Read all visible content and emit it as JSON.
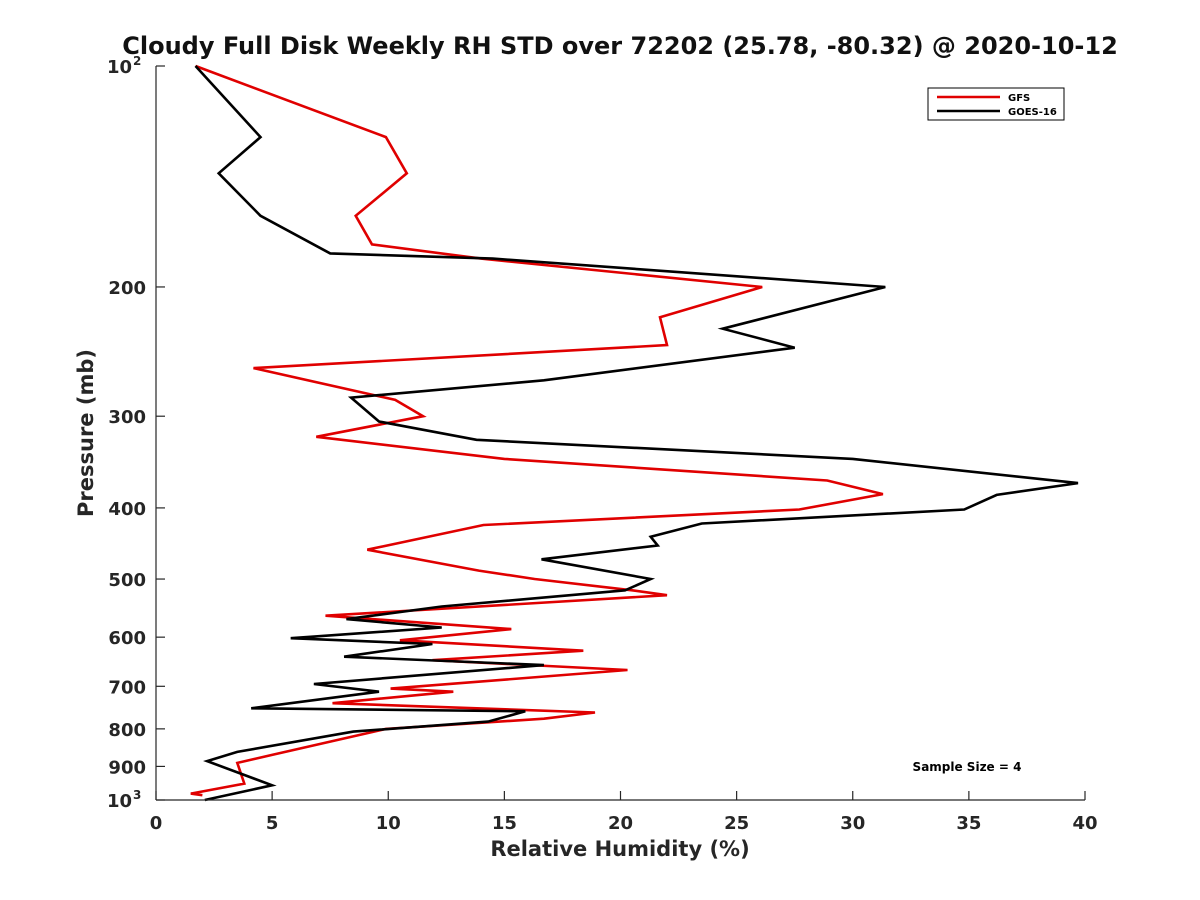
{
  "chart_data": {
    "type": "line",
    "title": "Cloudy Full Disk Weekly RH STD over 72202 (25.78, -80.32) @ 2020-10-12",
    "xlabel": "Relative Humidity (%)",
    "ylabel": "Pressure (mb)",
    "xlim": [
      0,
      40
    ],
    "ylim": [
      100,
      1000
    ],
    "y_scale": "log",
    "y_reversed": true,
    "x_ticks": [
      "0",
      "5",
      "10",
      "15",
      "20",
      "25",
      "30",
      "35",
      "40"
    ],
    "y_ticks": [
      {
        "value": 100,
        "base": "10",
        "exp": "2"
      },
      {
        "value": 200,
        "label": "200"
      },
      {
        "value": 300,
        "label": "300"
      },
      {
        "value": 400,
        "label": "400"
      },
      {
        "value": 500,
        "label": "500"
      },
      {
        "value": 600,
        "label": "600"
      },
      {
        "value": 700,
        "label": "700"
      },
      {
        "value": 800,
        "label": "800"
      },
      {
        "value": 900,
        "label": "900"
      },
      {
        "value": 1000,
        "base": "10",
        "exp": "3"
      }
    ],
    "grid": false,
    "legend_position": "top-right",
    "annotation": "Sample Size = 4",
    "series": [
      {
        "name": "GFS",
        "color": "#e00000",
        "points": [
          [
            1.7,
            100
          ],
          [
            9.9,
            125
          ],
          [
            10.8,
            140
          ],
          [
            8.6,
            160
          ],
          [
            9.3,
            175
          ],
          [
            14,
            183
          ],
          [
            26.1,
            200
          ],
          [
            21.7,
            220
          ],
          [
            22,
            240
          ],
          [
            4.2,
            258
          ],
          [
            10.3,
            285
          ],
          [
            11.5,
            300
          ],
          [
            6.9,
            320
          ],
          [
            15,
            343
          ],
          [
            28.9,
            367
          ],
          [
            31.3,
            383
          ],
          [
            27.7,
            402
          ],
          [
            14.1,
            422
          ],
          [
            9.1,
            456
          ],
          [
            13.9,
            487
          ],
          [
            16.3,
            500
          ],
          [
            20.5,
            518
          ],
          [
            22,
            526
          ],
          [
            7.3,
            561
          ],
          [
            15.3,
            585
          ],
          [
            10.5,
            606
          ],
          [
            18.4,
            626
          ],
          [
            11.9,
            645
          ],
          [
            20.3,
            665
          ],
          [
            10.1,
            705
          ],
          [
            12.8,
            712
          ],
          [
            7.6,
            738
          ],
          [
            18.9,
            760
          ],
          [
            16.7,
            775
          ],
          [
            9.9,
            800
          ],
          [
            5,
            868
          ],
          [
            3.5,
            890
          ],
          [
            3.8,
            950
          ],
          [
            1.5,
            980
          ],
          [
            2.0,
            985
          ]
        ]
      },
      {
        "name": "GOES-16",
        "color": "#000000",
        "points": [
          [
            1.7,
            100
          ],
          [
            4.5,
            125
          ],
          [
            2.7,
            140
          ],
          [
            4.5,
            160
          ],
          [
            7.5,
            180
          ],
          [
            14.5,
            183
          ],
          [
            31.4,
            200
          ],
          [
            24.4,
            228
          ],
          [
            27.5,
            242
          ],
          [
            16.7,
            268
          ],
          [
            8.4,
            283
          ],
          [
            9.6,
            305
          ],
          [
            13.8,
            323
          ],
          [
            30,
            343
          ],
          [
            39.7,
            370
          ],
          [
            36.2,
            384
          ],
          [
            34.8,
            402
          ],
          [
            23.5,
            420
          ],
          [
            21.3,
            438
          ],
          [
            21.6,
            450
          ],
          [
            16.6,
            470
          ],
          [
            21.3,
            500
          ],
          [
            20.2,
            518
          ],
          [
            12.3,
            545
          ],
          [
            8.2,
            567
          ],
          [
            12.3,
            582
          ],
          [
            5.8,
            602
          ],
          [
            11.9,
            613
          ],
          [
            8.1,
            638
          ],
          [
            16.7,
            655
          ],
          [
            6.8,
            695
          ],
          [
            9.6,
            712
          ],
          [
            4.1,
            750
          ],
          [
            15.9,
            757
          ],
          [
            14.3,
            782
          ],
          [
            8.5,
            807
          ],
          [
            3.5,
            860
          ],
          [
            2.2,
            885
          ],
          [
            5,
            955
          ],
          [
            2.1,
            1000
          ]
        ]
      }
    ]
  }
}
